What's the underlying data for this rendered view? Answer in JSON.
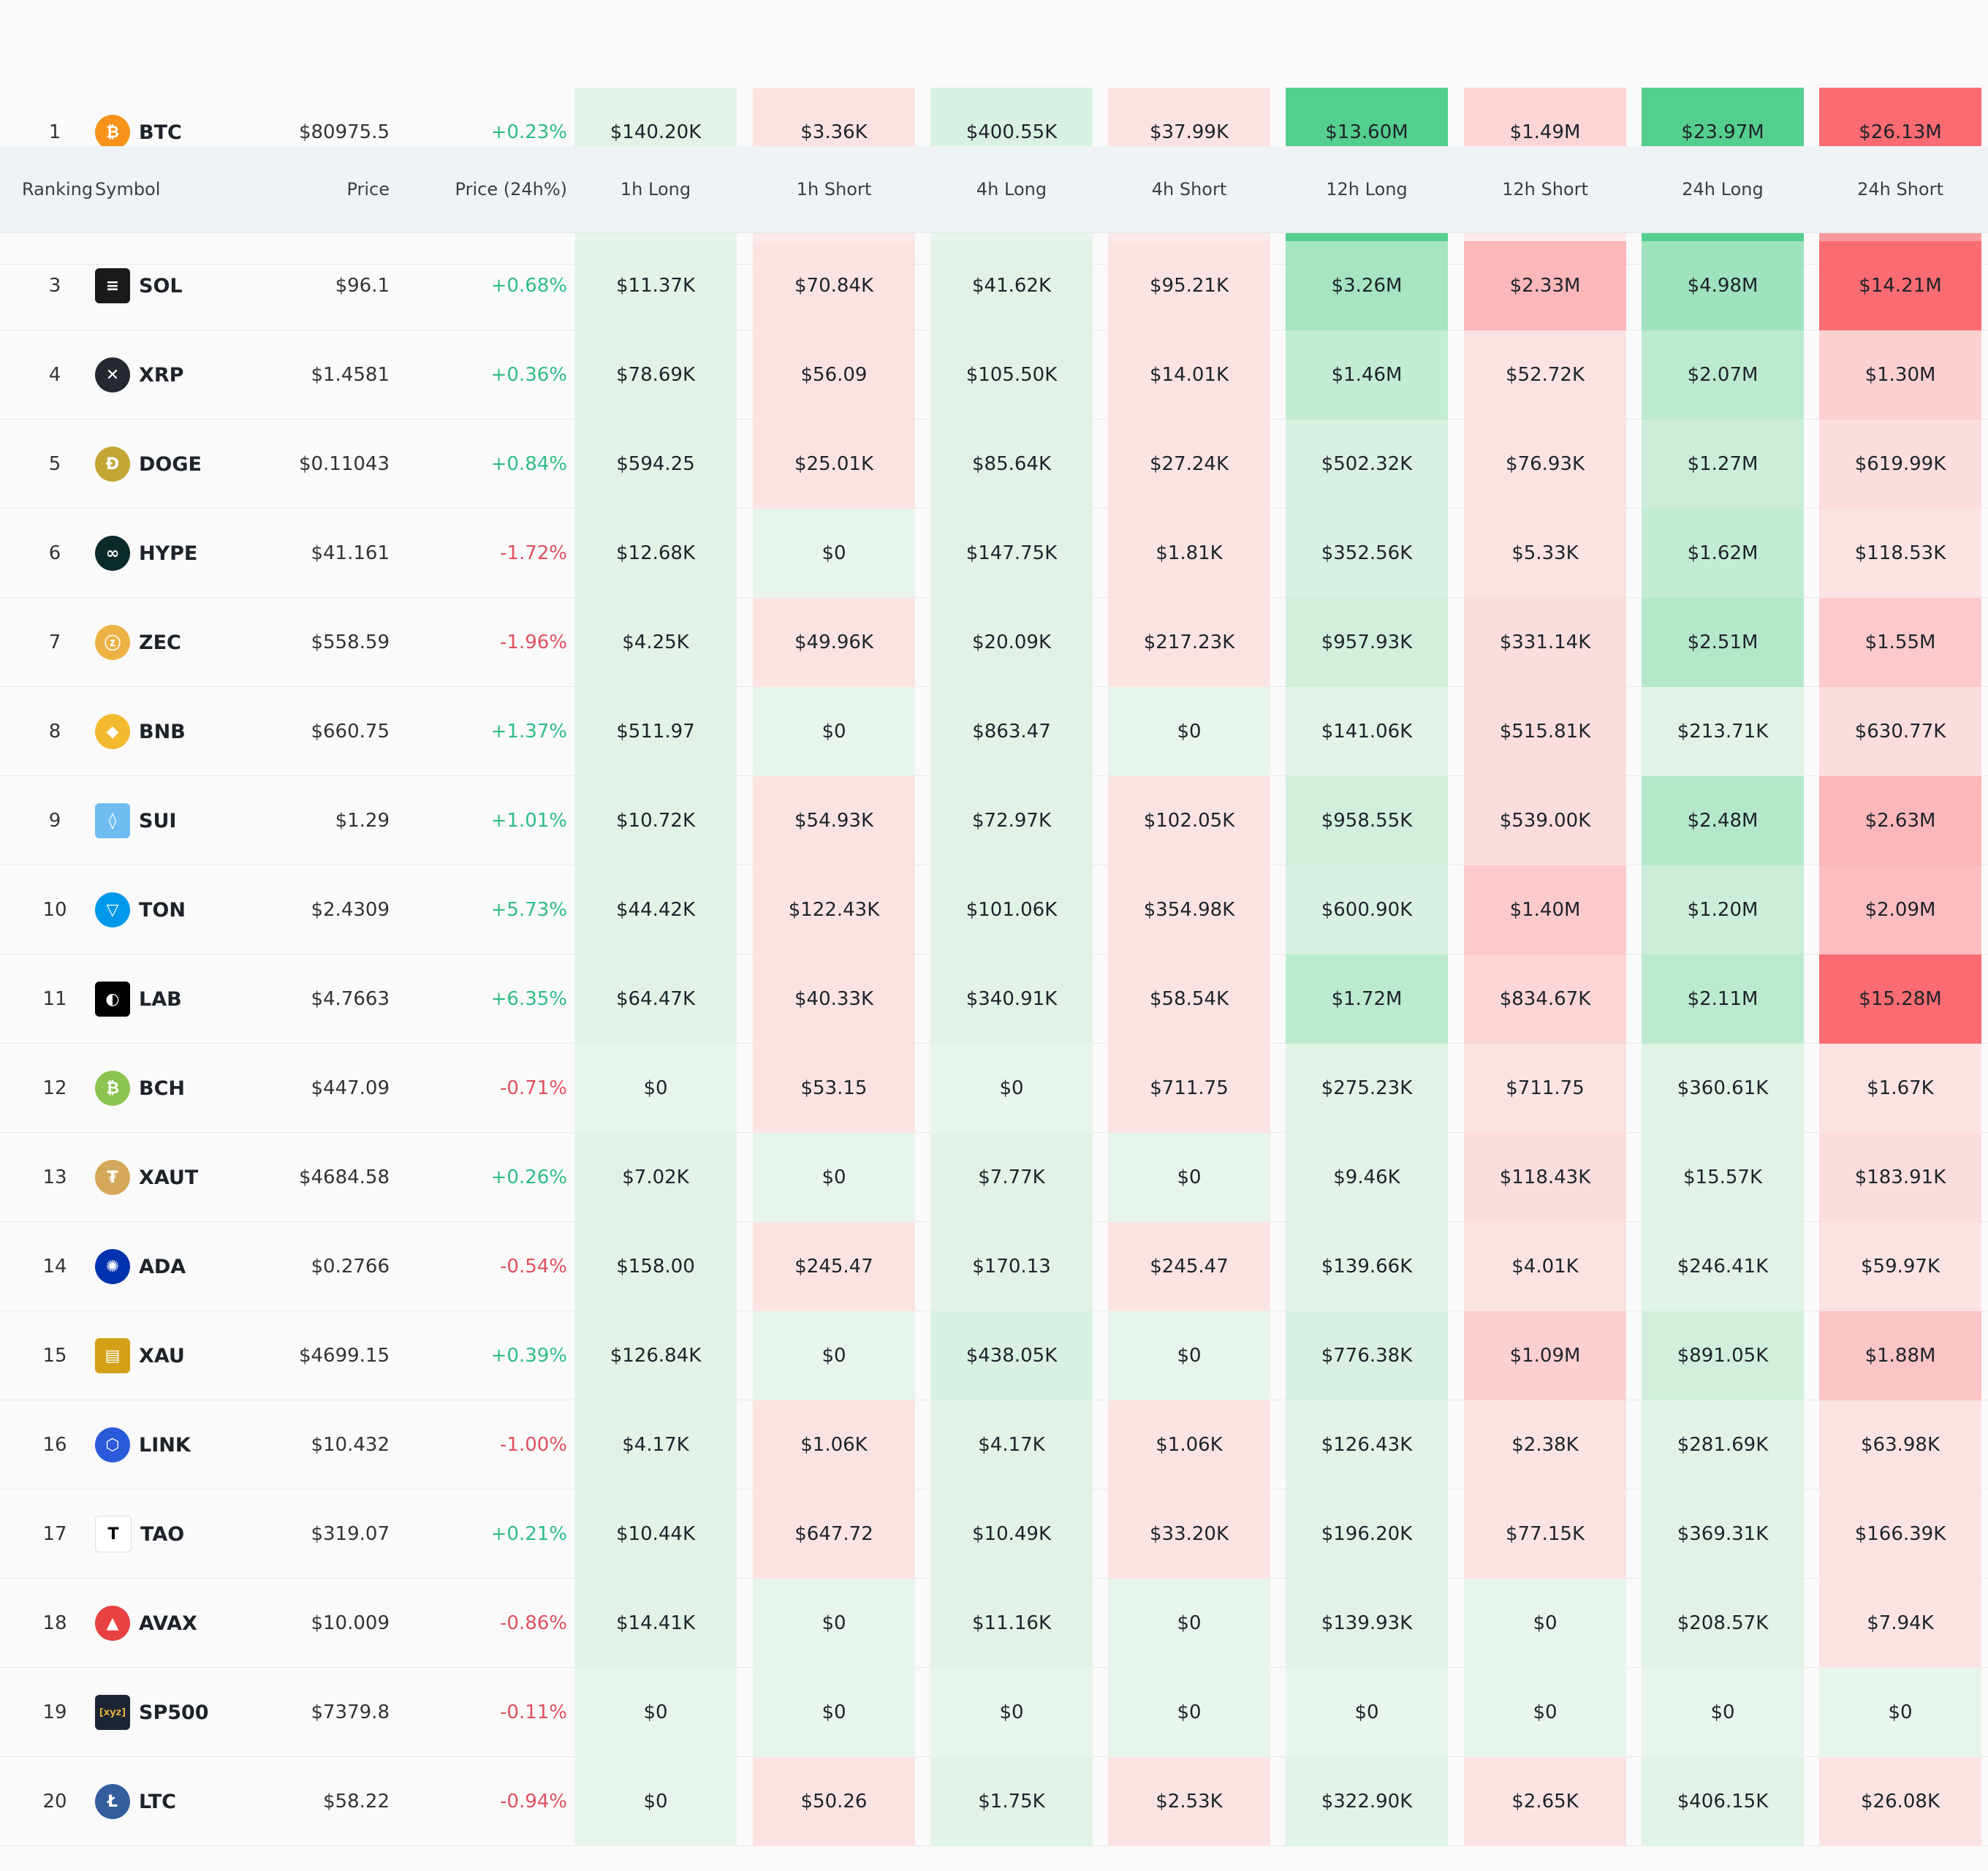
{
  "columns": {
    "ranking": "Ranking",
    "symbol": "Symbol",
    "price": "Price",
    "price_change": "Price (24h%)",
    "h1_long": "1h Long",
    "h1_short": "1h Short",
    "h4_long": "4h Long",
    "h4_short": "4h Short",
    "h12_long": "12h Long",
    "h12_short": "12h Short",
    "h24_long": "24h Long",
    "h24_short": "24h Short"
  },
  "colors": {
    "long_base": "#e8f5ec",
    "long_strong": "#55cf8f",
    "short_base": "#fce9e9",
    "short_strong": "#fa6c72",
    "up": "#2ebd85",
    "down": "#e04f5f"
  },
  "rows": [
    {
      "rank": "1",
      "symbol": "BTC",
      "icon": "btc-icon",
      "icon_color": "#f7931a",
      "glyph": "₿",
      "price": "$80975.5",
      "change": "+0.23%",
      "dir": "up",
      "values": [
        "$140.20K",
        "$3.36K",
        "$400.55K",
        "$37.99K",
        "$13.60M",
        "$1.49M",
        "$23.97M",
        "$26.13M"
      ],
      "intensity": [
        0.05,
        0.05,
        0.1,
        0.05,
        1.0,
        0.15,
        1.0,
        1.0
      ]
    },
    {
      "rank": "3",
      "symbol": "SOL",
      "icon": "sol-icon",
      "icon_color": "#1a1a1a",
      "glyph": "≡",
      "price": "$96.1",
      "change": "+0.68%",
      "dir": "up",
      "values": [
        "$11.37K",
        "$70.84K",
        "$41.62K",
        "$95.21K",
        "$3.26M",
        "$2.33M",
        "$4.98M",
        "$14.21M"
      ],
      "intensity": [
        0.05,
        0.05,
        0.05,
        0.05,
        0.45,
        0.4,
        0.5,
        1.0
      ]
    },
    {
      "rank": "4",
      "symbol": "XRP",
      "icon": "xrp-icon",
      "icon_color": "#23292f",
      "glyph": "✕",
      "price": "$1.4581",
      "change": "+0.36%",
      "dir": "up",
      "values": [
        "$78.69K",
        "$56.09",
        "$105.50K",
        "$14.01K",
        "$1.46M",
        "$52.72K",
        "$2.07M",
        "$1.30M"
      ],
      "intensity": [
        0.05,
        0.05,
        0.05,
        0.05,
        0.25,
        0.05,
        0.3,
        0.2
      ]
    },
    {
      "rank": "5",
      "symbol": "DOGE",
      "icon": "doge-icon",
      "icon_color": "#c2a633",
      "glyph": "Ð",
      "price": "$0.11043",
      "change": "+0.84%",
      "dir": "up",
      "values": [
        "$594.25",
        "$25.01K",
        "$85.64K",
        "$27.24K",
        "$502.32K",
        "$76.93K",
        "$1.27M",
        "$619.99K"
      ],
      "intensity": [
        0.05,
        0.05,
        0.05,
        0.05,
        0.1,
        0.05,
        0.2,
        0.1
      ]
    },
    {
      "rank": "6",
      "symbol": "HYPE",
      "icon": "hype-icon",
      "icon_color": "#0b2b2a",
      "glyph": "∞",
      "price": "$41.161",
      "change": "-1.72%",
      "dir": "down",
      "values": [
        "$12.68K",
        "$0",
        "$147.75K",
        "$1.81K",
        "$352.56K",
        "$5.33K",
        "$1.62M",
        "$118.53K"
      ],
      "intensity": [
        0.05,
        0.0,
        0.05,
        0.05,
        0.1,
        0.05,
        0.25,
        0.05
      ]
    },
    {
      "rank": "7",
      "symbol": "ZEC",
      "icon": "zec-icon",
      "icon_color": "#ecb244",
      "glyph": "ⓩ",
      "price": "$558.59",
      "change": "-1.96%",
      "dir": "down",
      "values": [
        "$4.25K",
        "$49.96K",
        "$20.09K",
        "$217.23K",
        "$957.93K",
        "$331.14K",
        "$2.51M",
        "$1.55M"
      ],
      "intensity": [
        0.05,
        0.05,
        0.05,
        0.05,
        0.15,
        0.1,
        0.35,
        0.25
      ]
    },
    {
      "rank": "8",
      "symbol": "BNB",
      "icon": "bnb-icon",
      "icon_color": "#f3ba2f",
      "glyph": "◆",
      "price": "$660.75",
      "change": "+1.37%",
      "dir": "up",
      "values": [
        "$511.97",
        "$0",
        "$863.47",
        "$0",
        "$141.06K",
        "$515.81K",
        "$213.71K",
        "$630.77K"
      ],
      "intensity": [
        0.05,
        0.0,
        0.05,
        0.0,
        0.05,
        0.1,
        0.05,
        0.1
      ]
    },
    {
      "rank": "9",
      "symbol": "SUI",
      "icon": "sui-icon",
      "icon_color": "#6fbcf0",
      "glyph": "◊",
      "price": "$1.29",
      "change": "+1.01%",
      "dir": "up",
      "values": [
        "$10.72K",
        "$54.93K",
        "$72.97K",
        "$102.05K",
        "$958.55K",
        "$539.00K",
        "$2.48M",
        "$2.63M"
      ],
      "intensity": [
        0.05,
        0.05,
        0.05,
        0.05,
        0.15,
        0.1,
        0.35,
        0.4
      ]
    },
    {
      "rank": "10",
      "symbol": "TON",
      "icon": "ton-icon",
      "icon_color": "#0098ea",
      "glyph": "▽",
      "price": "$2.4309",
      "change": "+5.73%",
      "dir": "up",
      "values": [
        "$44.42K",
        "$122.43K",
        "$101.06K",
        "$354.98K",
        "$600.90K",
        "$1.40M",
        "$1.20M",
        "$2.09M"
      ],
      "intensity": [
        0.05,
        0.05,
        0.05,
        0.05,
        0.1,
        0.25,
        0.2,
        0.35
      ]
    },
    {
      "rank": "11",
      "symbol": "LAB",
      "icon": "lab-icon",
      "icon_color": "#000000",
      "glyph": "◐",
      "price": "$4.7663",
      "change": "+6.35%",
      "dir": "up",
      "values": [
        "$64.47K",
        "$40.33K",
        "$340.91K",
        "$58.54K",
        "$1.72M",
        "$834.67K",
        "$2.11M",
        "$15.28M"
      ],
      "intensity": [
        0.05,
        0.05,
        0.05,
        0.05,
        0.3,
        0.15,
        0.3,
        1.0
      ]
    },
    {
      "rank": "12",
      "symbol": "BCH",
      "icon": "bch-icon",
      "icon_color": "#8dc351",
      "glyph": "₿",
      "price": "$447.09",
      "change": "-0.71%",
      "dir": "down",
      "values": [
        "$0",
        "$53.15",
        "$0",
        "$711.75",
        "$275.23K",
        "$711.75",
        "$360.61K",
        "$1.67K"
      ],
      "intensity": [
        0.0,
        0.05,
        0.0,
        0.05,
        0.05,
        0.05,
        0.05,
        0.05
      ]
    },
    {
      "rank": "13",
      "symbol": "XAUT",
      "icon": "xaut-icon",
      "icon_color": "#d4a85a",
      "glyph": "₮",
      "price": "$4684.58",
      "change": "+0.26%",
      "dir": "up",
      "values": [
        "$7.02K",
        "$0",
        "$7.77K",
        "$0",
        "$9.46K",
        "$118.43K",
        "$15.57K",
        "$183.91K"
      ],
      "intensity": [
        0.05,
        0.0,
        0.05,
        0.0,
        0.05,
        0.1,
        0.05,
        0.1
      ]
    },
    {
      "rank": "14",
      "symbol": "ADA",
      "icon": "ada-icon",
      "icon_color": "#0033ad",
      "glyph": "✺",
      "price": "$0.2766",
      "change": "-0.54%",
      "dir": "down",
      "values": [
        "$158.00",
        "$245.47",
        "$170.13",
        "$245.47",
        "$139.66K",
        "$4.01K",
        "$246.41K",
        "$59.97K"
      ],
      "intensity": [
        0.05,
        0.05,
        0.05,
        0.05,
        0.05,
        0.05,
        0.05,
        0.05
      ]
    },
    {
      "rank": "15",
      "symbol": "XAU",
      "icon": "xau-icon",
      "icon_color": "#d4a017",
      "glyph": "▤",
      "price": "$4699.15",
      "change": "+0.39%",
      "dir": "up",
      "values": [
        "$126.84K",
        "$0",
        "$438.05K",
        "$0",
        "$776.38K",
        "$1.09M",
        "$891.05K",
        "$1.88M"
      ],
      "intensity": [
        0.05,
        0.0,
        0.1,
        0.0,
        0.1,
        0.2,
        0.15,
        0.3
      ]
    },
    {
      "rank": "16",
      "symbol": "LINK",
      "icon": "link-icon",
      "icon_color": "#2a5ada",
      "glyph": "⬡",
      "price": "$10.432",
      "change": "-1.00%",
      "dir": "down",
      "values": [
        "$4.17K",
        "$1.06K",
        "$4.17K",
        "$1.06K",
        "$126.43K",
        "$2.38K",
        "$281.69K",
        "$63.98K"
      ],
      "intensity": [
        0.05,
        0.05,
        0.05,
        0.05,
        0.05,
        0.05,
        0.05,
        0.05
      ]
    },
    {
      "rank": "17",
      "symbol": "TAO",
      "icon": "tao-icon",
      "icon_color": "#ffffff",
      "glyph": "T",
      "price": "$319.07",
      "change": "+0.21%",
      "dir": "up",
      "values": [
        "$10.44K",
        "$647.72",
        "$10.49K",
        "$33.20K",
        "$196.20K",
        "$77.15K",
        "$369.31K",
        "$166.39K"
      ],
      "intensity": [
        0.05,
        0.05,
        0.05,
        0.05,
        0.05,
        0.05,
        0.05,
        0.05
      ]
    },
    {
      "rank": "18",
      "symbol": "AVAX",
      "icon": "avax-icon",
      "icon_color": "#e84142",
      "glyph": "▲",
      "price": "$10.009",
      "change": "-0.86%",
      "dir": "down",
      "values": [
        "$14.41K",
        "$0",
        "$11.16K",
        "$0",
        "$139.93K",
        "$0",
        "$208.57K",
        "$7.94K"
      ],
      "intensity": [
        0.05,
        0.0,
        0.05,
        0.0,
        0.05,
        0.0,
        0.05,
        0.05
      ]
    },
    {
      "rank": "19",
      "symbol": "SP500",
      "icon": "sp500-icon",
      "icon_color": "#1c2333",
      "glyph": "[xyz]",
      "price": "$7379.8",
      "change": "-0.11%",
      "dir": "down",
      "values": [
        "$0",
        "$0",
        "$0",
        "$0",
        "$0",
        "$0",
        "$0",
        "$0"
      ],
      "intensity": [
        0.0,
        0.0,
        0.0,
        0.0,
        0.0,
        0.0,
        0.0,
        0.0
      ]
    },
    {
      "rank": "20",
      "symbol": "LTC",
      "icon": "ltc-icon",
      "icon_color": "#345d9d",
      "glyph": "Ł",
      "price": "$58.22",
      "change": "-0.94%",
      "dir": "down",
      "values": [
        "$0",
        "$50.26",
        "$1.75K",
        "$2.53K",
        "$322.90K",
        "$2.65K",
        "$406.15K",
        "$26.08K"
      ],
      "intensity": [
        0.0,
        0.05,
        0.05,
        0.05,
        0.05,
        0.05,
        0.05,
        0.05
      ]
    }
  ]
}
